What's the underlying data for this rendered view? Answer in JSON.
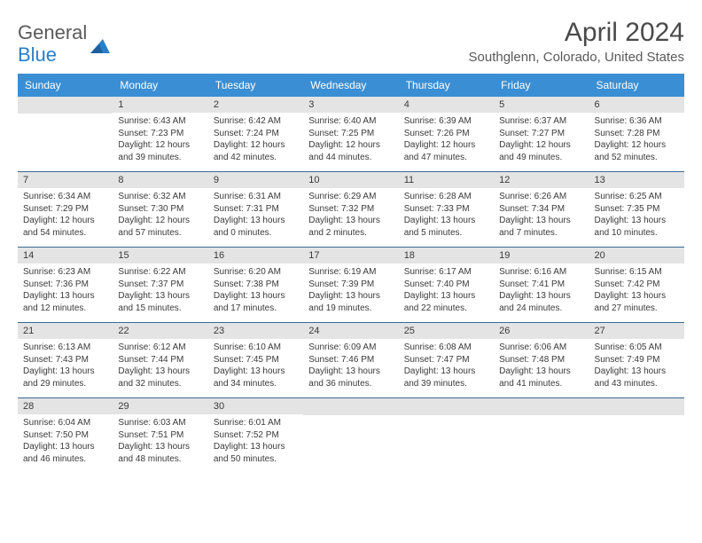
{
  "logo": {
    "line1": "General",
    "line2": "Blue"
  },
  "title": "April 2024",
  "location": "Southglenn, Colorado, United States",
  "colors": {
    "header_bg": "#3a8fd4",
    "header_text": "#ffffff",
    "daynum_bg": "#e4e4e4",
    "week_border": "#3a6a94",
    "text": "#3a3a3a",
    "title_text": "#4a4a4a",
    "logo_gray": "#5a5a5a",
    "logo_blue": "#2a7fc9"
  },
  "day_labels": [
    "Sunday",
    "Monday",
    "Tuesday",
    "Wednesday",
    "Thursday",
    "Friday",
    "Saturday"
  ],
  "weeks": [
    [
      {
        "n": "",
        "sr": "",
        "ss": "",
        "dl": ""
      },
      {
        "n": "1",
        "sr": "Sunrise: 6:43 AM",
        "ss": "Sunset: 7:23 PM",
        "dl": "Daylight: 12 hours and 39 minutes."
      },
      {
        "n": "2",
        "sr": "Sunrise: 6:42 AM",
        "ss": "Sunset: 7:24 PM",
        "dl": "Daylight: 12 hours and 42 minutes."
      },
      {
        "n": "3",
        "sr": "Sunrise: 6:40 AM",
        "ss": "Sunset: 7:25 PM",
        "dl": "Daylight: 12 hours and 44 minutes."
      },
      {
        "n": "4",
        "sr": "Sunrise: 6:39 AM",
        "ss": "Sunset: 7:26 PM",
        "dl": "Daylight: 12 hours and 47 minutes."
      },
      {
        "n": "5",
        "sr": "Sunrise: 6:37 AM",
        "ss": "Sunset: 7:27 PM",
        "dl": "Daylight: 12 hours and 49 minutes."
      },
      {
        "n": "6",
        "sr": "Sunrise: 6:36 AM",
        "ss": "Sunset: 7:28 PM",
        "dl": "Daylight: 12 hours and 52 minutes."
      }
    ],
    [
      {
        "n": "7",
        "sr": "Sunrise: 6:34 AM",
        "ss": "Sunset: 7:29 PM",
        "dl": "Daylight: 12 hours and 54 minutes."
      },
      {
        "n": "8",
        "sr": "Sunrise: 6:32 AM",
        "ss": "Sunset: 7:30 PM",
        "dl": "Daylight: 12 hours and 57 minutes."
      },
      {
        "n": "9",
        "sr": "Sunrise: 6:31 AM",
        "ss": "Sunset: 7:31 PM",
        "dl": "Daylight: 13 hours and 0 minutes."
      },
      {
        "n": "10",
        "sr": "Sunrise: 6:29 AM",
        "ss": "Sunset: 7:32 PM",
        "dl": "Daylight: 13 hours and 2 minutes."
      },
      {
        "n": "11",
        "sr": "Sunrise: 6:28 AM",
        "ss": "Sunset: 7:33 PM",
        "dl": "Daylight: 13 hours and 5 minutes."
      },
      {
        "n": "12",
        "sr": "Sunrise: 6:26 AM",
        "ss": "Sunset: 7:34 PM",
        "dl": "Daylight: 13 hours and 7 minutes."
      },
      {
        "n": "13",
        "sr": "Sunrise: 6:25 AM",
        "ss": "Sunset: 7:35 PM",
        "dl": "Daylight: 13 hours and 10 minutes."
      }
    ],
    [
      {
        "n": "14",
        "sr": "Sunrise: 6:23 AM",
        "ss": "Sunset: 7:36 PM",
        "dl": "Daylight: 13 hours and 12 minutes."
      },
      {
        "n": "15",
        "sr": "Sunrise: 6:22 AM",
        "ss": "Sunset: 7:37 PM",
        "dl": "Daylight: 13 hours and 15 minutes."
      },
      {
        "n": "16",
        "sr": "Sunrise: 6:20 AM",
        "ss": "Sunset: 7:38 PM",
        "dl": "Daylight: 13 hours and 17 minutes."
      },
      {
        "n": "17",
        "sr": "Sunrise: 6:19 AM",
        "ss": "Sunset: 7:39 PM",
        "dl": "Daylight: 13 hours and 19 minutes."
      },
      {
        "n": "18",
        "sr": "Sunrise: 6:17 AM",
        "ss": "Sunset: 7:40 PM",
        "dl": "Daylight: 13 hours and 22 minutes."
      },
      {
        "n": "19",
        "sr": "Sunrise: 6:16 AM",
        "ss": "Sunset: 7:41 PM",
        "dl": "Daylight: 13 hours and 24 minutes."
      },
      {
        "n": "20",
        "sr": "Sunrise: 6:15 AM",
        "ss": "Sunset: 7:42 PM",
        "dl": "Daylight: 13 hours and 27 minutes."
      }
    ],
    [
      {
        "n": "21",
        "sr": "Sunrise: 6:13 AM",
        "ss": "Sunset: 7:43 PM",
        "dl": "Daylight: 13 hours and 29 minutes."
      },
      {
        "n": "22",
        "sr": "Sunrise: 6:12 AM",
        "ss": "Sunset: 7:44 PM",
        "dl": "Daylight: 13 hours and 32 minutes."
      },
      {
        "n": "23",
        "sr": "Sunrise: 6:10 AM",
        "ss": "Sunset: 7:45 PM",
        "dl": "Daylight: 13 hours and 34 minutes."
      },
      {
        "n": "24",
        "sr": "Sunrise: 6:09 AM",
        "ss": "Sunset: 7:46 PM",
        "dl": "Daylight: 13 hours and 36 minutes."
      },
      {
        "n": "25",
        "sr": "Sunrise: 6:08 AM",
        "ss": "Sunset: 7:47 PM",
        "dl": "Daylight: 13 hours and 39 minutes."
      },
      {
        "n": "26",
        "sr": "Sunrise: 6:06 AM",
        "ss": "Sunset: 7:48 PM",
        "dl": "Daylight: 13 hours and 41 minutes."
      },
      {
        "n": "27",
        "sr": "Sunrise: 6:05 AM",
        "ss": "Sunset: 7:49 PM",
        "dl": "Daylight: 13 hours and 43 minutes."
      }
    ],
    [
      {
        "n": "28",
        "sr": "Sunrise: 6:04 AM",
        "ss": "Sunset: 7:50 PM",
        "dl": "Daylight: 13 hours and 46 minutes."
      },
      {
        "n": "29",
        "sr": "Sunrise: 6:03 AM",
        "ss": "Sunset: 7:51 PM",
        "dl": "Daylight: 13 hours and 48 minutes."
      },
      {
        "n": "30",
        "sr": "Sunrise: 6:01 AM",
        "ss": "Sunset: 7:52 PM",
        "dl": "Daylight: 13 hours and 50 minutes."
      },
      {
        "n": "",
        "sr": "",
        "ss": "",
        "dl": ""
      },
      {
        "n": "",
        "sr": "",
        "ss": "",
        "dl": ""
      },
      {
        "n": "",
        "sr": "",
        "ss": "",
        "dl": ""
      },
      {
        "n": "",
        "sr": "",
        "ss": "",
        "dl": ""
      }
    ]
  ]
}
